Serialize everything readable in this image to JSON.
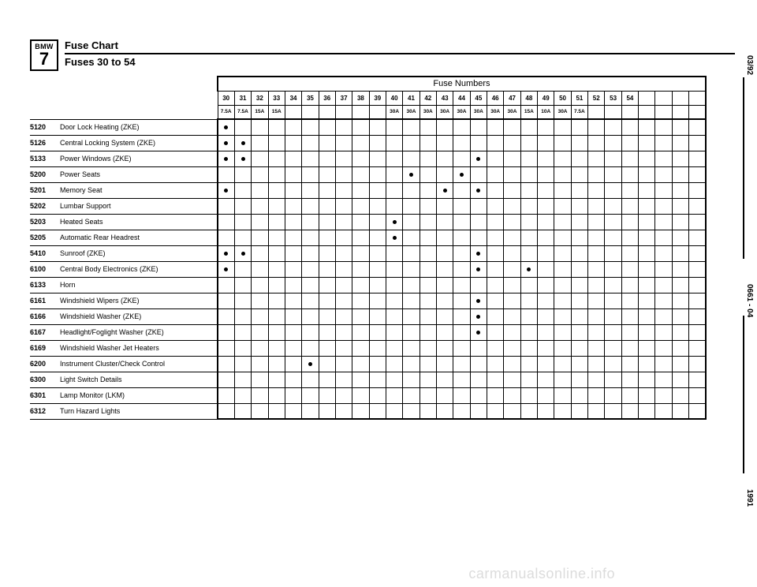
{
  "logo": {
    "line1": "BMW",
    "line2": "7"
  },
  "title1": "Fuse Chart",
  "title2": "Fuses 30 to 54",
  "grid_title": "Fuse Numbers",
  "side_labels": {
    "top": "03/92",
    "mid": "0661 - 04",
    "bot": "1991"
  },
  "watermark": "carmanualsonline.info",
  "columns": [
    "30",
    "31",
    "32",
    "33",
    "34",
    "35",
    "36",
    "37",
    "38",
    "39",
    "40",
    "41",
    "42",
    "43",
    "44",
    "45",
    "46",
    "47",
    "48",
    "49",
    "50",
    "51",
    "52",
    "53",
    "54",
    "",
    "",
    "",
    ""
  ],
  "amps": [
    "7.5A",
    "7.5A",
    "15A",
    "15A",
    "",
    "",
    "",
    "",
    "",
    "",
    "30A",
    "30A",
    "30A",
    "30A",
    "30A",
    "30A",
    "30A",
    "30A",
    "15A",
    "10A",
    "30A",
    "7.5A",
    "",
    "",
    "",
    "",
    "",
    "",
    ""
  ],
  "rows": [
    {
      "code": "5120",
      "desc": "Door Lock Heating (ZKE)",
      "dots": [
        0
      ]
    },
    {
      "code": "5126",
      "desc": "Central Locking System (ZKE)",
      "dots": [
        0,
        1
      ]
    },
    {
      "code": "5133",
      "desc": "Power Windows (ZKE)",
      "dots": [
        0,
        1,
        15
      ]
    },
    {
      "code": "5200",
      "desc": "Power Seats",
      "dots": [
        11,
        14
      ]
    },
    {
      "code": "5201",
      "desc": "Memory Seat",
      "dots": [
        0,
        13,
        15
      ]
    },
    {
      "code": "5202",
      "desc": "Lumbar Support",
      "dots": []
    },
    {
      "code": "5203",
      "desc": "Heated Seats",
      "dots": [
        10
      ]
    },
    {
      "code": "5205",
      "desc": "Automatic Rear Headrest",
      "dots": [
        10
      ]
    },
    {
      "code": "5410",
      "desc": "Sunroof (ZKE)",
      "dots": [
        0,
        1,
        15
      ]
    },
    {
      "code": "6100",
      "desc": "Central Body Electronics (ZKE)",
      "dots": [
        0,
        15,
        18
      ]
    },
    {
      "code": "6133",
      "desc": "Horn",
      "dots": []
    },
    {
      "code": "6161",
      "desc": "Windshield Wipers (ZKE)",
      "dots": [
        15
      ]
    },
    {
      "code": "6166",
      "desc": "Windshield Washer (ZKE)",
      "dots": [
        15
      ]
    },
    {
      "code": "6167",
      "desc": "Headlight/Foglight Washer (ZKE)",
      "dots": [
        15
      ]
    },
    {
      "code": "6169",
      "desc": "Windshield Washer Jet Heaters",
      "dots": []
    },
    {
      "code": "6200",
      "desc": "Instrument Cluster/Check Control",
      "dots": [
        5
      ]
    },
    {
      "code": "6300",
      "desc": "Light Switch Details",
      "dots": []
    },
    {
      "code": "6301",
      "desc": "Lamp Monitor (LKM)",
      "dots": []
    },
    {
      "code": "6312",
      "desc": "Turn Hazard Lights",
      "dots": []
    }
  ],
  "col_count": 29
}
